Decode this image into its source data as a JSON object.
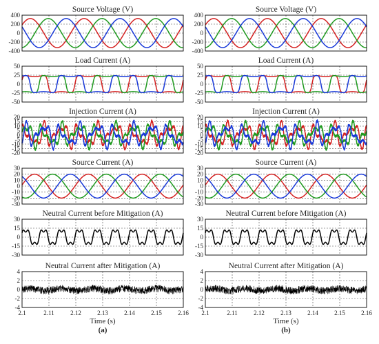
{
  "columns": [
    {
      "label": "(a)"
    },
    {
      "label": "(b)"
    }
  ],
  "colors": {
    "phase_a": "#d42020",
    "phase_b": "#1f9a1f",
    "phase_c": "#1838d8",
    "neutral": "#000000",
    "grid": "#444444",
    "frame": "#000000"
  },
  "chart_data": [
    {
      "type": "line",
      "title": "Source Voltage (V)",
      "ylim": [
        -400,
        400
      ],
      "yticks": [
        400,
        200,
        0,
        -200,
        -400
      ],
      "xlim": [
        2.1,
        2.16
      ],
      "kind": "voltage",
      "amplitude": 325,
      "series": [
        {
          "color": "phase_a"
        },
        {
          "color": "phase_b"
        },
        {
          "color": "phase_c"
        }
      ]
    },
    {
      "type": "line",
      "title": "Load Current (A)",
      "ylim": [
        -50,
        50
      ],
      "yticks": [
        50,
        25,
        0,
        -25,
        -50
      ],
      "xlim": [
        2.1,
        2.16
      ],
      "kind": "load",
      "amplitude": 25,
      "series": [
        {
          "color": "phase_a"
        },
        {
          "color": "phase_b"
        },
        {
          "color": "phase_c"
        }
      ]
    },
    {
      "type": "line",
      "title": "Injection Current (A)",
      "ylim": [
        -20,
        20
      ],
      "yticks": [
        20,
        15,
        10,
        5,
        0,
        -5,
        -10,
        -15,
        -20
      ],
      "xlim": [
        2.1,
        2.16
      ],
      "kind": "injection",
      "amplitude": 13,
      "series": [
        {
          "color": "phase_a"
        },
        {
          "color": "phase_b"
        },
        {
          "color": "phase_c"
        }
      ]
    },
    {
      "type": "line",
      "title": "Source Current (A)",
      "ylim": [
        -30,
        30
      ],
      "yticks": [
        30,
        20,
        10,
        0,
        -10,
        -20,
        -30
      ],
      "xlim": [
        2.1,
        2.16
      ],
      "kind": "source",
      "amplitude": 20,
      "series": [
        {
          "color": "phase_a"
        },
        {
          "color": "phase_b"
        },
        {
          "color": "phase_c"
        }
      ]
    },
    {
      "type": "line",
      "title": "Neutral Current before Mitigation (A)",
      "ylim": [
        -30,
        30
      ],
      "yticks": [
        30,
        15,
        0,
        -15,
        -30
      ],
      "xlim": [
        2.1,
        2.16
      ],
      "kind": "neutral_before",
      "amplitude": 17,
      "series": [
        {
          "color": "neutral"
        }
      ]
    },
    {
      "type": "line",
      "title": "Neutral Current after Mitigation (A)",
      "ylim": [
        -4,
        4
      ],
      "yticks": [
        4,
        2,
        0,
        -2,
        -4
      ],
      "xlim": [
        2.1,
        2.16
      ],
      "kind": "neutral_after",
      "amplitude": 0.8,
      "series": [
        {
          "color": "neutral"
        }
      ]
    }
  ],
  "x_axis": {
    "label": "Time (s)",
    "ticks": [
      "2.1",
      "2.11",
      "2.12",
      "2.13",
      "2.14",
      "2.15",
      "2.16"
    ],
    "tick_values": [
      2.1,
      2.11,
      2.12,
      2.13,
      2.14,
      2.15,
      2.16
    ],
    "grid": true
  },
  "frequency_hz": 50
}
